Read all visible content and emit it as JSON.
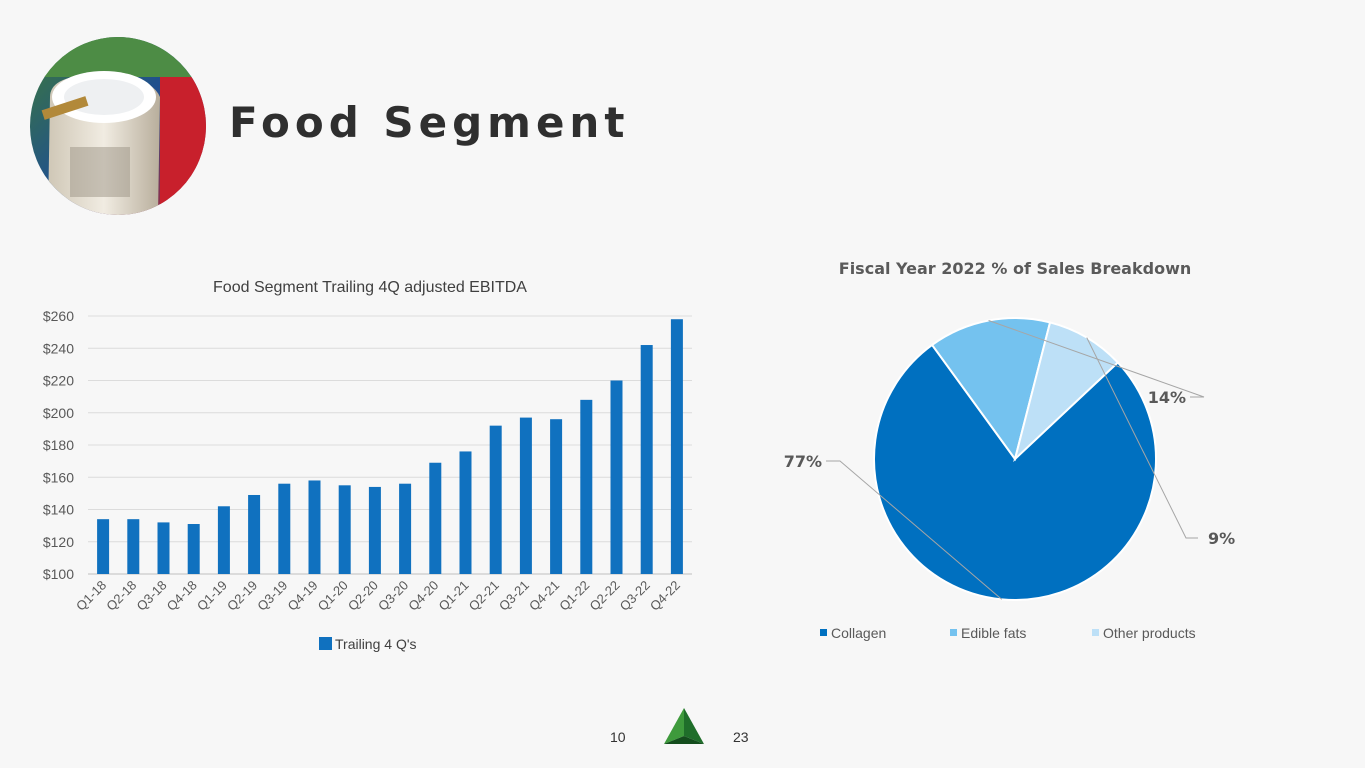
{
  "slide": {
    "title": "Food Segment",
    "page_left": "10",
    "page_right": "23",
    "logo_icon": "green-pyramid-icon",
    "photo_icon": "collagen-jar-photo"
  },
  "chart_data": [
    {
      "type": "bar",
      "title": "Food Segment Trailing 4Q adjusted EBITDA",
      "categories": [
        "Q1-18",
        "Q2-18",
        "Q3-18",
        "Q4-18",
        "Q1-19",
        "Q2-19",
        "Q3-19",
        "Q4-19",
        "Q1-20",
        "Q2-20",
        "Q3-20",
        "Q4-20",
        "Q1-21",
        "Q2-21",
        "Q3-21",
        "Q4-21",
        "Q1-22",
        "Q2-22",
        "Q3-22",
        "Q4-22"
      ],
      "series": [
        {
          "name": "Trailing 4 Q's",
          "values": [
            134,
            134,
            132,
            131,
            142,
            149,
            156,
            158,
            155,
            154,
            156,
            169,
            176,
            192,
            197,
            196,
            208,
            220,
            242,
            258
          ]
        }
      ],
      "ylim": [
        100,
        260
      ],
      "yticks": [
        "$100",
        "$120",
        "$140",
        "$160",
        "$180",
        "$200",
        "$220",
        "$240",
        "$260"
      ],
      "grid": true,
      "legend": "bottom",
      "color": "#1071bf"
    },
    {
      "type": "pie",
      "title": "Fiscal Year 2022 % of Sales Breakdown",
      "labels": [
        "Collagen",
        "Edible fats",
        "Other products"
      ],
      "values": [
        77,
        14,
        9
      ],
      "data_labels": [
        "77%",
        "14%",
        "9%"
      ],
      "colors": [
        "#0070c0",
        "#74c2ef",
        "#bde0f7"
      ],
      "legend": "bottom"
    }
  ]
}
